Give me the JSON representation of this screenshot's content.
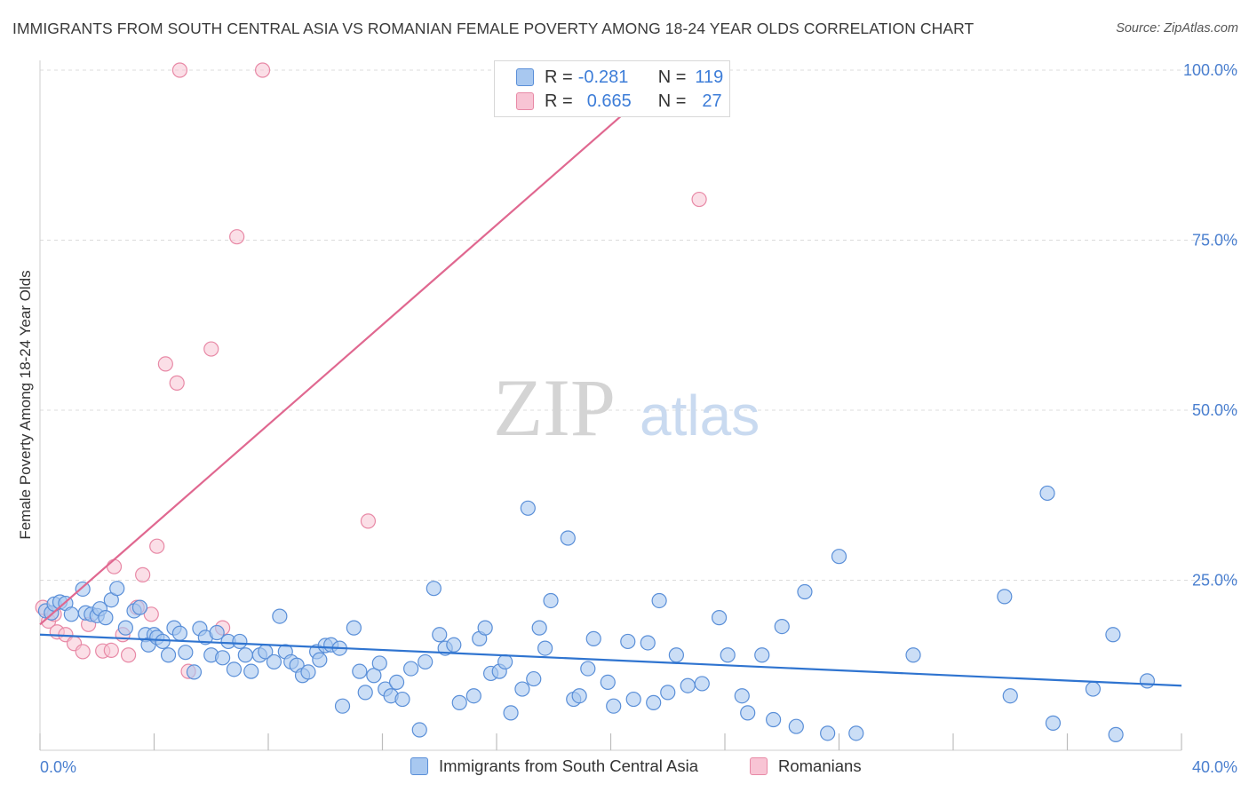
{
  "header": {
    "title": "IMMIGRANTS FROM SOUTH CENTRAL ASIA VS ROMANIAN FEMALE POVERTY AMONG 18-24 YEAR OLDS CORRELATION CHART",
    "source": "Source: ZipAtlas.com"
  },
  "watermark": {
    "zip": "ZIP",
    "atlas": "atlas"
  },
  "legend": {
    "series1": {
      "r_label": "R =",
      "r_value": "-0.281",
      "n_label": "N =",
      "n_value": "119"
    },
    "series2": {
      "r_label": "R =",
      "r_value": "0.665",
      "n_label": "N =",
      "n_value": "27"
    }
  },
  "bottom_legend": {
    "series1": "Immigrants from South Central Asia",
    "series2": "Romanians"
  },
  "colors": {
    "blue_fill": "#a8c8f0",
    "blue_stroke": "#5a8fd8",
    "blue_line": "#2f74d0",
    "pink_fill": "#f8c4d4",
    "pink_stroke": "#e889a6",
    "pink_line": "#e06890",
    "accent_text": "#4a7fcf"
  },
  "chart_data": {
    "type": "scatter",
    "title": "IMMIGRANTS FROM SOUTH CENTRAL ASIA VS ROMANIAN FEMALE POVERTY AMONG 18-24 YEAR OLDS CORRELATION CHART",
    "xlabel": "",
    "ylabel": "Female Poverty Among 18-24 Year Olds",
    "xlim": [
      0,
      40
    ],
    "ylim": [
      0,
      100
    ],
    "x_tick_labels": [
      "0.0%",
      "40.0%"
    ],
    "y_tick_labels": [
      "25.0%",
      "50.0%",
      "75.0%",
      "100.0%"
    ],
    "y_ticks": [
      25,
      50,
      75,
      100
    ],
    "grid": true,
    "legend_position": "top-center",
    "series": [
      {
        "name": "Immigrants from South Central Asia",
        "r": -0.281,
        "n": 119,
        "trend": {
          "x": [
            0,
            40
          ],
          "y": [
            17.0,
            9.5
          ]
        },
        "points": [
          [
            0.2,
            20.5
          ],
          [
            0.4,
            20.2
          ],
          [
            0.5,
            21.5
          ],
          [
            0.7,
            21.8
          ],
          [
            0.9,
            21.6
          ],
          [
            1.1,
            20.0
          ],
          [
            1.5,
            23.7
          ],
          [
            1.6,
            20.2
          ],
          [
            1.8,
            20.0
          ],
          [
            2.0,
            19.8
          ],
          [
            2.1,
            20.8
          ],
          [
            2.3,
            19.5
          ],
          [
            2.5,
            22.1
          ],
          [
            2.7,
            23.8
          ],
          [
            3.0,
            18.0
          ],
          [
            3.3,
            20.5
          ],
          [
            3.5,
            21.0
          ],
          [
            3.7,
            17.0
          ],
          [
            3.8,
            15.5
          ],
          [
            4.0,
            17.0
          ],
          [
            4.1,
            16.6
          ],
          [
            4.3,
            16.0
          ],
          [
            4.5,
            14.0
          ],
          [
            4.7,
            18.0
          ],
          [
            4.9,
            17.2
          ],
          [
            5.1,
            14.4
          ],
          [
            5.4,
            11.5
          ],
          [
            5.6,
            17.9
          ],
          [
            5.8,
            16.6
          ],
          [
            6.0,
            14.0
          ],
          [
            6.2,
            17.3
          ],
          [
            6.4,
            13.6
          ],
          [
            6.6,
            16.0
          ],
          [
            6.8,
            11.9
          ],
          [
            7.0,
            16.0
          ],
          [
            7.2,
            14.0
          ],
          [
            7.4,
            11.6
          ],
          [
            7.7,
            14.0
          ],
          [
            7.9,
            14.5
          ],
          [
            8.2,
            13.0
          ],
          [
            8.4,
            19.7
          ],
          [
            8.6,
            14.5
          ],
          [
            8.8,
            13.0
          ],
          [
            9.0,
            12.5
          ],
          [
            9.2,
            11.0
          ],
          [
            9.4,
            11.5
          ],
          [
            9.7,
            14.5
          ],
          [
            9.8,
            13.3
          ],
          [
            10.0,
            15.4
          ],
          [
            10.2,
            15.5
          ],
          [
            10.5,
            15.0
          ],
          [
            10.6,
            6.5
          ],
          [
            11.0,
            18.0
          ],
          [
            11.2,
            11.6
          ],
          [
            11.4,
            8.5
          ],
          [
            11.7,
            11.0
          ],
          [
            11.9,
            12.8
          ],
          [
            12.1,
            9.0
          ],
          [
            12.3,
            8.0
          ],
          [
            12.5,
            10.0
          ],
          [
            12.7,
            7.5
          ],
          [
            13.0,
            12.0
          ],
          [
            13.3,
            3.0
          ],
          [
            13.5,
            13.0
          ],
          [
            13.8,
            23.8
          ],
          [
            14.0,
            17.0
          ],
          [
            14.2,
            15.0
          ],
          [
            14.5,
            15.5
          ],
          [
            14.7,
            7.0
          ],
          [
            15.2,
            8.0
          ],
          [
            15.4,
            16.4
          ],
          [
            15.6,
            18.0
          ],
          [
            15.8,
            11.3
          ],
          [
            16.1,
            11.6
          ],
          [
            16.3,
            13.0
          ],
          [
            16.5,
            5.5
          ],
          [
            16.9,
            9.0
          ],
          [
            17.1,
            35.6
          ],
          [
            17.3,
            10.5
          ],
          [
            17.5,
            18.0
          ],
          [
            17.7,
            15.0
          ],
          [
            17.9,
            22.0
          ],
          [
            18.5,
            31.2
          ],
          [
            18.7,
            7.5
          ],
          [
            18.9,
            8.0
          ],
          [
            19.4,
            16.4
          ],
          [
            19.2,
            12.0
          ],
          [
            19.9,
            10.0
          ],
          [
            20.1,
            6.5
          ],
          [
            20.6,
            16.0
          ],
          [
            20.8,
            7.5
          ],
          [
            21.3,
            15.8
          ],
          [
            21.5,
            7.0
          ],
          [
            21.7,
            22.0
          ],
          [
            22.0,
            8.5
          ],
          [
            22.3,
            14.0
          ],
          [
            22.7,
            9.5
          ],
          [
            23.2,
            9.8
          ],
          [
            23.8,
            19.5
          ],
          [
            24.1,
            14.0
          ],
          [
            24.6,
            8.0
          ],
          [
            24.8,
            5.5
          ],
          [
            25.3,
            14.0
          ],
          [
            26.0,
            18.2
          ],
          [
            25.7,
            4.5
          ],
          [
            26.5,
            3.5
          ],
          [
            26.8,
            23.3
          ],
          [
            27.6,
            2.5
          ],
          [
            28.0,
            28.5
          ],
          [
            28.6,
            2.5
          ],
          [
            30.6,
            14.0
          ],
          [
            33.8,
            22.6
          ],
          [
            34.0,
            8.0
          ],
          [
            35.3,
            37.8
          ],
          [
            35.5,
            4.0
          ],
          [
            36.9,
            9.0
          ],
          [
            37.6,
            17.0
          ],
          [
            37.7,
            2.3
          ],
          [
            38.8,
            10.2
          ]
        ]
      },
      {
        "name": "Romanians",
        "r": 0.665,
        "n": 27,
        "trend": {
          "x": [
            0,
            22.2
          ],
          "y": [
            18.5,
            100
          ]
        },
        "points": [
          [
            0.1,
            21.0
          ],
          [
            0.3,
            19.0
          ],
          [
            0.5,
            20.0
          ],
          [
            0.6,
            17.4
          ],
          [
            0.9,
            17.0
          ],
          [
            1.2,
            15.7
          ],
          [
            1.5,
            14.5
          ],
          [
            1.7,
            18.5
          ],
          [
            2.2,
            14.6
          ],
          [
            2.5,
            14.7
          ],
          [
            2.6,
            27.0
          ],
          [
            2.9,
            17.0
          ],
          [
            3.1,
            14.0
          ],
          [
            3.4,
            21.0
          ],
          [
            3.6,
            25.8
          ],
          [
            3.9,
            20.0
          ],
          [
            4.1,
            30.0
          ],
          [
            4.4,
            56.8
          ],
          [
            4.8,
            54.0
          ],
          [
            5.2,
            11.6
          ],
          [
            6.0,
            59.0
          ],
          [
            6.4,
            18.0
          ],
          [
            6.9,
            75.5
          ],
          [
            4.9,
            100.0
          ],
          [
            7.8,
            100.0
          ],
          [
            11.5,
            33.7
          ],
          [
            23.1,
            81.0
          ]
        ]
      }
    ]
  }
}
